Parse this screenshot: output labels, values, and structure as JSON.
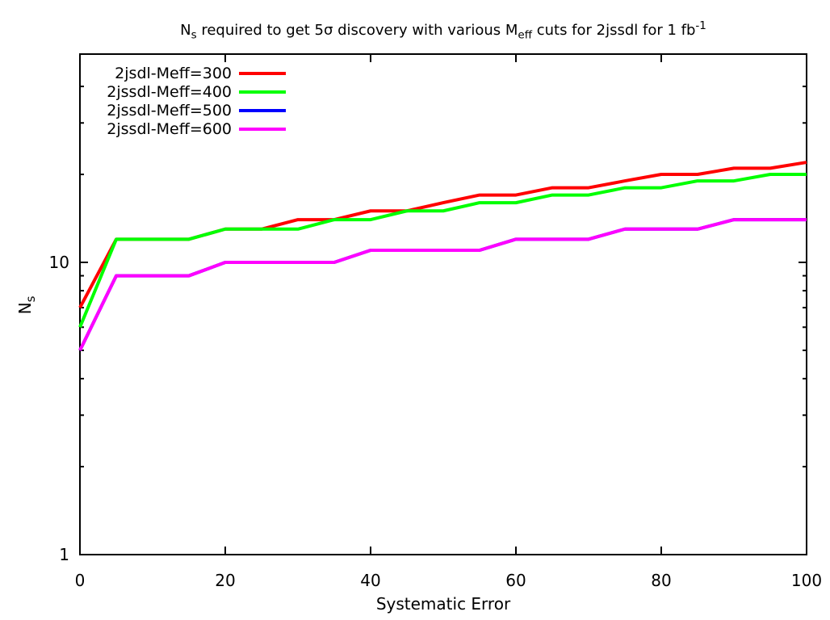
{
  "title": {
    "part1": "N",
    "sub1": "s",
    "part2": " required to get 5σ discovery with various M",
    "sub2": "eff",
    "part3": " cuts for 2jssdl for 1 fb",
    "sup1": "-1"
  },
  "axes": {
    "x_label": "Systematic Error",
    "y_label_main": "N",
    "y_label_sub": "s"
  },
  "chart_data": {
    "type": "line",
    "title": "N_s required to get 5σ discovery with various M_eff cuts for 2jssdl for 1 fb^-1",
    "xlabel": "Systematic Error",
    "ylabel": "N_s",
    "y_scale": "log",
    "x_range": [
      0,
      100
    ],
    "y_range": [
      1,
      51.6
    ],
    "grid": false,
    "legend_position": "top-left",
    "x_ticks": [
      0,
      20,
      40,
      60,
      80,
      100
    ],
    "y_ticks": [
      1,
      10
    ],
    "y_minor_ticks": [
      2,
      3,
      4,
      5,
      6,
      7,
      8,
      9,
      20,
      30,
      40
    ],
    "x": [
      0,
      5,
      10,
      15,
      20,
      25,
      30,
      35,
      40,
      45,
      50,
      55,
      60,
      65,
      70,
      75,
      80,
      85,
      90,
      95,
      100
    ],
    "series": [
      {
        "name": "2jsdl-Meff=300",
        "color": "#ff0000",
        "values": [
          7,
          12,
          12,
          12,
          13,
          13,
          14,
          14,
          15,
          15,
          16,
          17,
          17,
          18,
          18,
          19,
          20,
          20,
          21,
          21,
          22
        ]
      },
      {
        "name": "2jssdl-Meff=400",
        "color": "#00ff00",
        "values": [
          6,
          12,
          12,
          12,
          13,
          13,
          13,
          14,
          14,
          15,
          15,
          16,
          16,
          17,
          17,
          18,
          18,
          19,
          19,
          20,
          20
        ]
      },
      {
        "name": "2jssdl-Meff=500",
        "color": "#0000ff",
        "values": [
          5,
          9,
          9,
          9,
          10,
          10,
          10,
          10,
          11,
          11,
          11,
          11,
          12,
          12,
          12,
          13,
          13,
          13,
          14,
          14,
          14
        ]
      },
      {
        "name": "2jssdl-Meff=600",
        "color": "#ff00ff",
        "values": [
          5,
          9,
          9,
          9,
          10,
          10,
          10,
          10,
          11,
          11,
          11,
          11,
          12,
          12,
          12,
          13,
          13,
          13,
          14,
          14,
          14
        ]
      }
    ]
  }
}
